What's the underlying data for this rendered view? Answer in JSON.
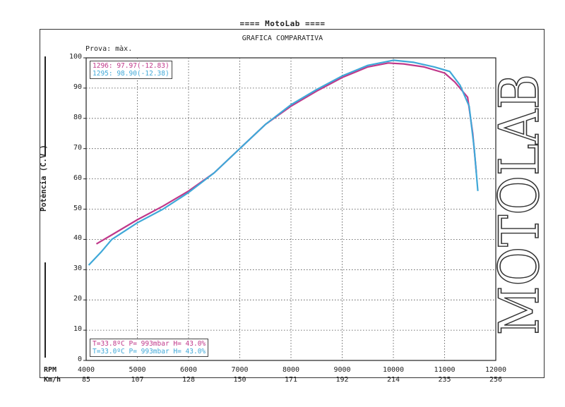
{
  "header": "==== MotoLab ====",
  "chart_data": {
    "type": "line",
    "title": "GRAFICA COMPARATIVA",
    "subtitle": "Prova: màx.",
    "ylabel": "Potència (C.V.)",
    "xlabel_rpm": "RPM",
    "xlabel_kmh": "Km/h",
    "xlim": [
      4000,
      12000
    ],
    "ylim": [
      0,
      100
    ],
    "yticks": [
      0,
      10,
      20,
      30,
      40,
      50,
      60,
      70,
      80,
      90,
      100
    ],
    "xticks_rpm": [
      "4000",
      "5000",
      "6000",
      "7000",
      "8000",
      "9000",
      "10000",
      "11000",
      "12000"
    ],
    "xticks_kmh": [
      "85",
      "107",
      "128",
      "150",
      "171",
      "192",
      "214",
      "235",
      "256"
    ],
    "grid": true,
    "legend_position": "top-left",
    "series": [
      {
        "name": "1296",
        "label": "1296: 97.97(-12.83)",
        "color": "#c0388a",
        "conditions": "T=33.8ºC P= 993mbar H= 43.0%",
        "x": [
          4200,
          4500,
          5000,
          5500,
          6000,
          6500,
          7000,
          7500,
          8000,
          8500,
          9000,
          9500,
          9900,
          10200,
          10600,
          11000,
          11200,
          11450,
          11550,
          11620
        ],
        "y": [
          38.5,
          41.5,
          46.5,
          51,
          56,
          62,
          70,
          78,
          84,
          89,
          93.5,
          97,
          98.3,
          98,
          97,
          95,
          92,
          87,
          75,
          62
        ]
      },
      {
        "name": "1295",
        "label": "1295: 98.90(-12.38)",
        "color": "#3fa8d8",
        "conditions": "T=33.0ºC P= 993mbar H= 43.0%",
        "x": [
          4050,
          4300,
          4500,
          5000,
          5500,
          6000,
          6500,
          7000,
          7500,
          8000,
          8500,
          9000,
          9500,
          10000,
          10400,
          10800,
          11100,
          11300,
          11480,
          11580,
          11650
        ],
        "y": [
          31.5,
          36,
          40,
          45.5,
          50,
          55.5,
          62,
          70,
          78,
          84.5,
          89.5,
          94,
          97.5,
          99.2,
          98.5,
          97,
          95.5,
          91,
          84,
          70,
          56
        ]
      }
    ]
  },
  "brand_logo": "MOTOLAB"
}
